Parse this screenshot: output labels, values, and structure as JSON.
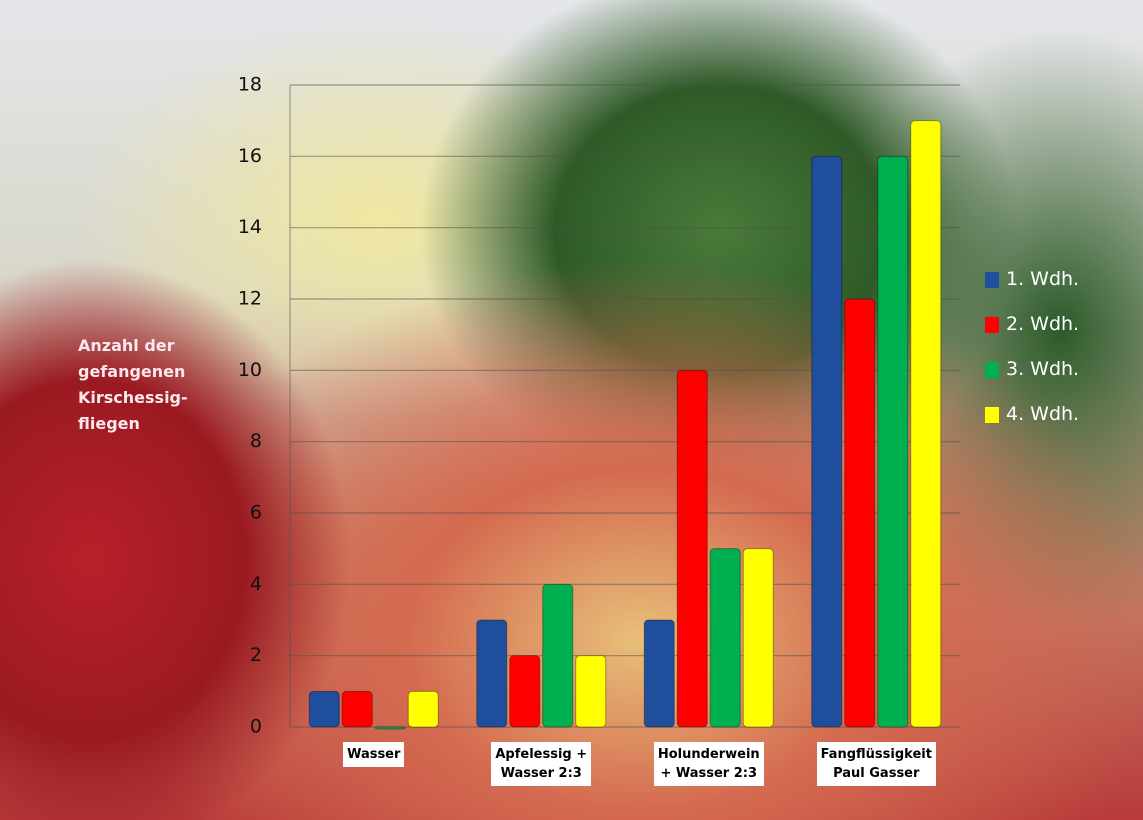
{
  "chart_data": {
    "type": "bar",
    "y_label": "Anzahl der\ngefangenen\nKirschessig-\nfliegen",
    "categories": [
      "Wasser",
      "Apfelessig +\nWasser 2:3",
      "Holunderwein\n+ Wasser 2:3",
      "Fangflüssigkeit\nPaul Gasser"
    ],
    "series": [
      {
        "name": "1. Wdh.",
        "color": "#1f4e9c",
        "values": [
          1,
          3,
          3,
          16
        ]
      },
      {
        "name": "2. Wdh.",
        "color": "#ff0000",
        "values": [
          1,
          2,
          10,
          12
        ]
      },
      {
        "name": "3. Wdh.",
        "color": "#00b050",
        "values": [
          0,
          4,
          5,
          16
        ]
      },
      {
        "name": "4. Wdh.",
        "color": "#ffff00",
        "values": [
          1,
          2,
          5,
          17
        ]
      }
    ],
    "ylim": [
      0,
      18
    ],
    "yticks": [
      0,
      2,
      4,
      6,
      8,
      10,
      12,
      14,
      16,
      18
    ],
    "grid": true,
    "legend": "right"
  }
}
